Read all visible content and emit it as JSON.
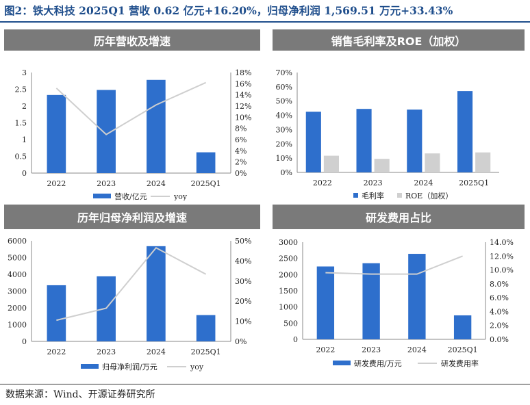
{
  "figure_title": "图2：铁大科技 2025Q1 营收 0.62 亿元+16.20%，归母净利润 1,569.51 万元+33.43%",
  "source": "数据来源：Wind、开源证券研究所",
  "colors": {
    "bar": "#2e6fcc",
    "bar_gray": "#d0d0d0",
    "line": "#cfcfcf",
    "header": "#7a7a7a",
    "title": "#1f4e8c"
  },
  "chart_data": [
    {
      "id": "revenue",
      "header": "历年营收及增速",
      "type": "bar",
      "categories": [
        "2022",
        "2023",
        "2024",
        "2025Q1"
      ],
      "left_axis": {
        "min": 0,
        "max": 3,
        "step": 0.5,
        "decimals": 1,
        "percent": false,
        "ticks": [
          "0",
          "0.5",
          "1",
          "1.5",
          "2",
          "2.5",
          "3"
        ]
      },
      "right_axis": {
        "min": 0,
        "max": 0.18,
        "step": 0.02,
        "decimals": 0,
        "percent": true,
        "ticks": [
          "0%",
          "2%",
          "4%",
          "6%",
          "8%",
          "10%",
          "12%",
          "14%",
          "16%",
          "18%"
        ]
      },
      "series": [
        {
          "name": "营收/亿元",
          "kind": "bar",
          "axis": "left",
          "values": [
            2.33,
            2.48,
            2.78,
            0.62
          ],
          "color": "#2e6fcc"
        },
        {
          "name": "yoy",
          "kind": "line",
          "axis": "right",
          "values": [
            0.152,
            0.069,
            0.122,
            0.162
          ],
          "color": "#cfcfcf"
        }
      ]
    },
    {
      "id": "margin",
      "header": "销售毛利率及ROE（加权）",
      "type": "bar",
      "categories": [
        "2022",
        "2023",
        "2024",
        "2025Q1"
      ],
      "left_axis": {
        "min": 0,
        "max": 0.7,
        "step": 0.1,
        "decimals": 0,
        "percent": true,
        "ticks": [
          "0%",
          "10%",
          "20%",
          "30%",
          "40%",
          "50%",
          "60%",
          "70%"
        ]
      },
      "right_axis": null,
      "series": [
        {
          "name": "毛利率",
          "kind": "bar",
          "axis": "left",
          "values": [
            0.425,
            0.445,
            0.44,
            0.57
          ],
          "color": "#2e6fcc"
        },
        {
          "name": "ROE（加权）",
          "kind": "bar",
          "axis": "left",
          "values": [
            0.117,
            0.095,
            0.133,
            0.14
          ],
          "color": "#d0d0d0"
        }
      ]
    },
    {
      "id": "netprofit",
      "header": "历年归母净利润及增速",
      "type": "bar",
      "categories": [
        "2022",
        "2023",
        "2024",
        "2025Q1"
      ],
      "left_axis": {
        "min": 0,
        "max": 6000,
        "step": 1000,
        "decimals": 0,
        "percent": false,
        "ticks": [
          "0",
          "1000",
          "2000",
          "3000",
          "4000",
          "5000",
          "6000"
        ]
      },
      "right_axis": {
        "min": 0,
        "max": 0.5,
        "step": 0.1,
        "decimals": 0,
        "percent": true,
        "ticks": [
          "0%",
          "10%",
          "20%",
          "30%",
          "40%",
          "50%"
        ]
      },
      "series": [
        {
          "name": "归母净利润/万元",
          "kind": "bar",
          "axis": "left",
          "values": [
            3350,
            3880,
            5680,
            1570
          ],
          "color": "#2e6fcc"
        },
        {
          "name": "yoy",
          "kind": "line",
          "axis": "right",
          "values": [
            0.105,
            0.165,
            0.465,
            0.334
          ],
          "color": "#cfcfcf"
        }
      ]
    },
    {
      "id": "rnd",
      "header": "研发费用占比",
      "type": "bar",
      "categories": [
        "2022",
        "2023",
        "2024",
        "2025Q1"
      ],
      "left_axis": {
        "min": 0,
        "max": 3000,
        "step": 500,
        "decimals": 0,
        "percent": false,
        "ticks": [
          "0",
          "500",
          "1000",
          "1500",
          "2000",
          "2500",
          "3000"
        ]
      },
      "right_axis": {
        "min": 0,
        "max": 0.14,
        "step": 0.02,
        "decimals": 1,
        "percent": true,
        "ticks": [
          "0.0%",
          "2.0%",
          "4.0%",
          "6.0%",
          "8.0%",
          "10.0%",
          "12.0%",
          "14.0%"
        ]
      },
      "series": [
        {
          "name": "研发费用/万元",
          "kind": "bar",
          "axis": "left",
          "values": [
            2250,
            2350,
            2640,
            740
          ],
          "color": "#2e6fcc"
        },
        {
          "name": "研发费用率",
          "kind": "line",
          "axis": "right",
          "values": [
            0.096,
            0.094,
            0.094,
            0.12
          ],
          "color": "#cfcfcf"
        }
      ]
    }
  ]
}
